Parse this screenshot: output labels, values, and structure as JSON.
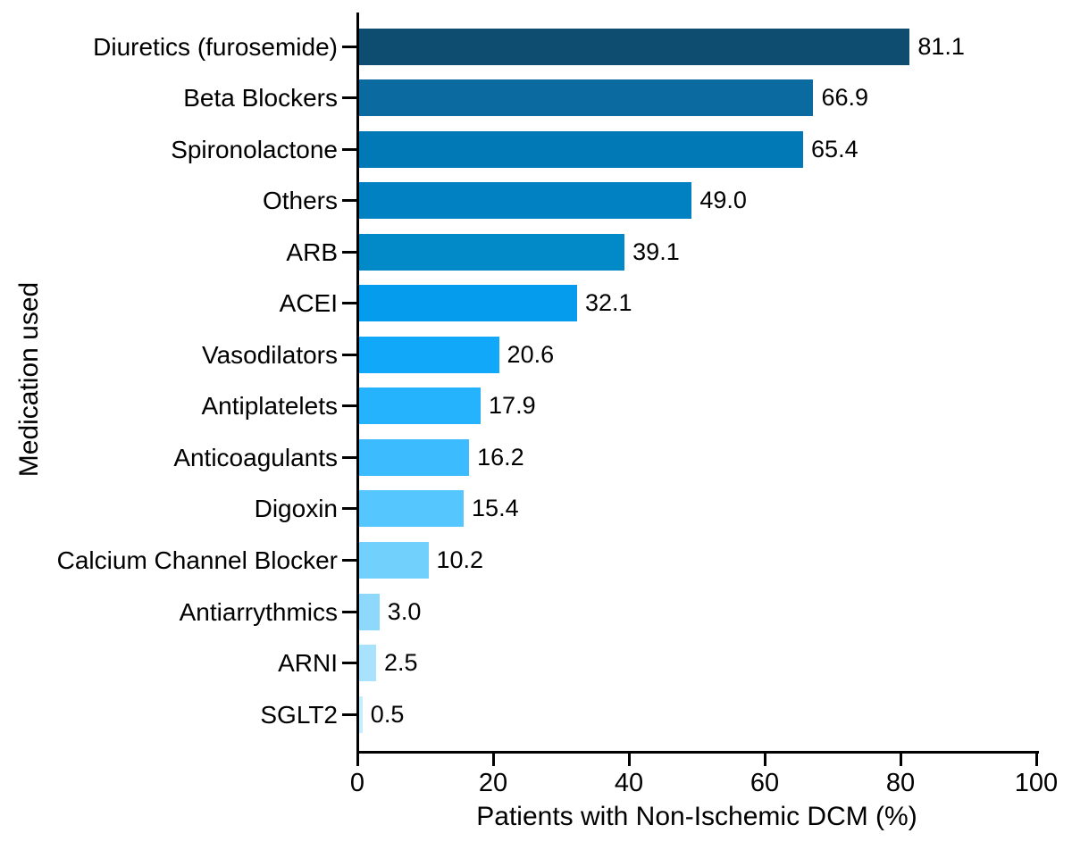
{
  "chart_data": {
    "type": "bar",
    "orientation": "horizontal",
    "title": "",
    "xlabel": "Patients with Non-Ischemic DCM (%)",
    "ylabel": "Medication used",
    "xlim": [
      0,
      100
    ],
    "x_ticks": [
      0,
      20,
      40,
      60,
      80,
      100
    ],
    "grid": "off",
    "legend": "none",
    "categories": [
      "Diuretics (furosemide)",
      "Beta Blockers",
      "Spironolactone",
      "Others",
      "ARB",
      "ACEI",
      "Vasodilators",
      "Antiplatelets",
      "Anticoagulants",
      "Digoxin",
      "Calcium Channel Blocker",
      "Antiarrythmics",
      "ARNI",
      "SGLT2"
    ],
    "values": [
      81.1,
      66.9,
      65.4,
      49.0,
      39.1,
      32.1,
      20.6,
      17.9,
      16.2,
      15.4,
      10.2,
      3.0,
      2.5,
      0.5
    ],
    "value_labels": [
      "81.1",
      "66.9",
      "65.4",
      "49.0",
      "39.1",
      "32.1",
      "20.6",
      "17.9",
      "16.2",
      "15.4",
      "10.2",
      "3.0",
      "2.5",
      "0.5"
    ],
    "bar_colors": [
      "#0e4c70",
      "#0b6ba1",
      "#0179b7",
      "#0181c1",
      "#0289c8",
      "#059ced",
      "#12a8fa",
      "#25b3fe",
      "#3cbcfe",
      "#55c6fe",
      "#72d0fd",
      "#8ed9fb",
      "#a9e2fc",
      "#c6ecfd"
    ],
    "axis_color": "#000000",
    "background_color": "#ffffff"
  }
}
